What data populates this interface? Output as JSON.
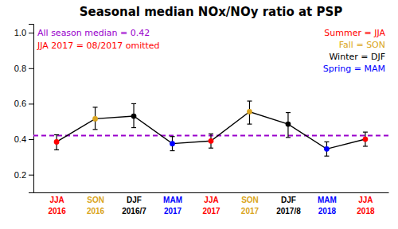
{
  "chart_data": {
    "type": "line",
    "title": "Seasonal median NOx/NOy ratio at PSP",
    "categories": [
      "JJA\n2016",
      "SON\n2016",
      "DJF\n2016/7",
      "MAM\n2017",
      "JJA\n2017",
      "SON\n2017",
      "DJF\n2017/8",
      "MAM\n2018",
      "JJA\n2018"
    ],
    "series": [
      {
        "color": "black",
        "marker": "circle",
        "values": [
          0.385,
          0.515,
          0.53,
          0.375,
          0.39,
          0.555,
          0.485,
          0.345,
          0.4
        ],
        "error_lower": [
          0.045,
          0.06,
          0.065,
          0.04,
          0.04,
          0.07,
          0.075,
          0.04,
          0.04
        ],
        "error_upper": [
          0.04,
          0.065,
          0.07,
          0.04,
          0.04,
          0.06,
          0.065,
          0.04,
          0.04
        ],
        "colors": [
          "red",
          "#DAA520",
          "black",
          "blue",
          "red",
          "#DAA520",
          "black",
          "blue",
          "red"
        ]
      }
    ],
    "median_line": {
      "value": 0.42,
      "color": "#9900CC",
      "line_style": "dashed"
    },
    "ylim": [
      0.1,
      1.05
    ],
    "yticks": [
      0.2,
      0.4,
      0.6,
      0.8,
      {
        "value": 1.0,
        "label": "1.0"
      }
    ],
    "annotations": [
      {
        "text": "All season median = 0.42",
        "color": "#9900CC"
      },
      {
        "text": "JJA 2017 = 08/2017 omitted",
        "color": "red"
      }
    ],
    "legend": "upper right",
    "legend_entries": [
      {
        "label": "Summer = JJA",
        "color": "red"
      },
      {
        "label": "Fall = SON",
        "color": "#DAA520"
      },
      {
        "label": "Winter = DJF",
        "color": "black"
      },
      {
        "label": "Spring = MAM",
        "color": "blue"
      }
    ],
    "grid": false
  }
}
